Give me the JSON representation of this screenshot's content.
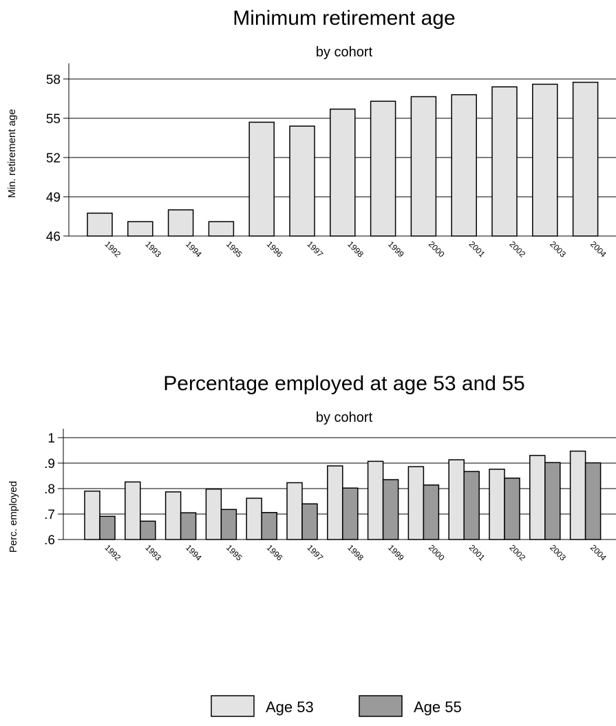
{
  "chart_data": [
    {
      "type": "bar",
      "title": "Minimum retirement age",
      "subtitle": "by cohort",
      "xlabel": "",
      "ylabel": "Min. retirement age",
      "categories": [
        "1992",
        "1993",
        "1994",
        "1995",
        "1996",
        "1997",
        "1998",
        "1999",
        "2000",
        "2001",
        "2002",
        "2003",
        "2004"
      ],
      "series": [
        {
          "values": [
            47.75,
            47.1,
            48.0,
            47.1,
            54.7,
            54.4,
            55.7,
            56.3,
            56.65,
            56.8,
            57.4,
            57.6,
            57.75
          ]
        }
      ],
      "ylim": [
        46,
        59.2
      ],
      "yticks": [
        46,
        49,
        52,
        55,
        58
      ],
      "ytick_labels": [
        "46",
        "49",
        "52",
        "55",
        "58"
      ],
      "grid": true,
      "colors": [
        "#e3e3e3"
      ]
    },
    {
      "type": "bar",
      "title": "Percentage employed at age 53 and 55",
      "subtitle": "by cohort",
      "xlabel": "",
      "ylabel": "Perc. employed",
      "categories": [
        "1992",
        "1993",
        "1994",
        "1995",
        "1996",
        "1997",
        "1998",
        "1999",
        "2000",
        "2001",
        "2002",
        "2003",
        "2004"
      ],
      "series": [
        {
          "name": "Age 53",
          "values": [
            0.79,
            0.826,
            0.787,
            0.798,
            0.762,
            0.823,
            0.889,
            0.907,
            0.886,
            0.913,
            0.876,
            0.93,
            0.947
          ]
        },
        {
          "name": "Age 55",
          "values": [
            0.691,
            0.672,
            0.705,
            0.718,
            0.706,
            0.74,
            0.802,
            0.835,
            0.814,
            0.867,
            0.841,
            0.902,
            0.901
          ]
        }
      ],
      "ylim": [
        0.6,
        1.035
      ],
      "yticks": [
        0.6,
        0.7,
        0.8,
        0.9,
        1.0
      ],
      "ytick_labels": [
        ".6",
        ".7",
        ".8",
        ".9",
        "1"
      ],
      "grid": true,
      "legend": "bottom",
      "colors": [
        "#e3e3e3",
        "#9a9a9a"
      ]
    }
  ]
}
